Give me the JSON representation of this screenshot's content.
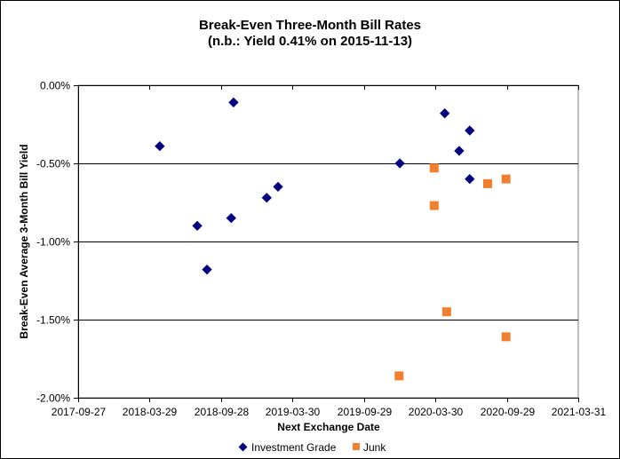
{
  "chart_data": {
    "type": "scatter",
    "title": "Break-Even Three-Month Bill Rates",
    "subtitle": "(n.b.: Yield  0.41% on 2015-11-13)",
    "xlabel": "Next Exchange Date",
    "ylabel": "Break-Even Average 3-Month  Bill Yield",
    "xlim": [
      "2017-09-27",
      "2021-03-31"
    ],
    "x_ticks": [
      "2017-09-27",
      "2018-03-29",
      "2018-09-28",
      "2019-03-30",
      "2019-09-29",
      "2020-03-30",
      "2020-09-29",
      "2021-03-31"
    ],
    "ylim": [
      -2.0,
      0.0
    ],
    "y_ticks": [
      0.0,
      -0.5,
      -1.0,
      -1.5,
      -2.0
    ],
    "y_tick_labels": [
      "0.00%",
      "-0.50%",
      "-1.00%",
      "-1.50%",
      "-2.00%"
    ],
    "grid": "horizontal",
    "legend_position": "bottom",
    "series": [
      {
        "name": "Investment Grade",
        "marker": "diamond",
        "color": "#000080",
        "points": [
          [
            "2018-04-24",
            -0.39
          ],
          [
            "2018-07-29",
            -0.9
          ],
          [
            "2018-08-23",
            -1.18
          ],
          [
            "2018-10-24",
            -0.85
          ],
          [
            "2018-10-30",
            -0.11
          ],
          [
            "2019-01-23",
            -0.72
          ],
          [
            "2019-02-21",
            -0.65
          ],
          [
            "2019-12-30",
            -0.5
          ],
          [
            "2020-04-23",
            -0.18
          ],
          [
            "2020-05-30",
            -0.42
          ],
          [
            "2020-06-26",
            -0.29
          ],
          [
            "2020-06-26",
            -0.6
          ]
        ]
      },
      {
        "name": "Junk",
        "marker": "square",
        "color": "#F08030",
        "points": [
          [
            "2020-03-27",
            -0.53
          ],
          [
            "2020-03-27",
            -0.77
          ],
          [
            "2020-04-28",
            -1.45
          ],
          [
            "2019-12-28",
            -1.86
          ],
          [
            "2020-08-11",
            -0.63
          ],
          [
            "2020-09-27",
            -0.6
          ],
          [
            "2020-09-27",
            -1.61
          ]
        ]
      }
    ]
  }
}
